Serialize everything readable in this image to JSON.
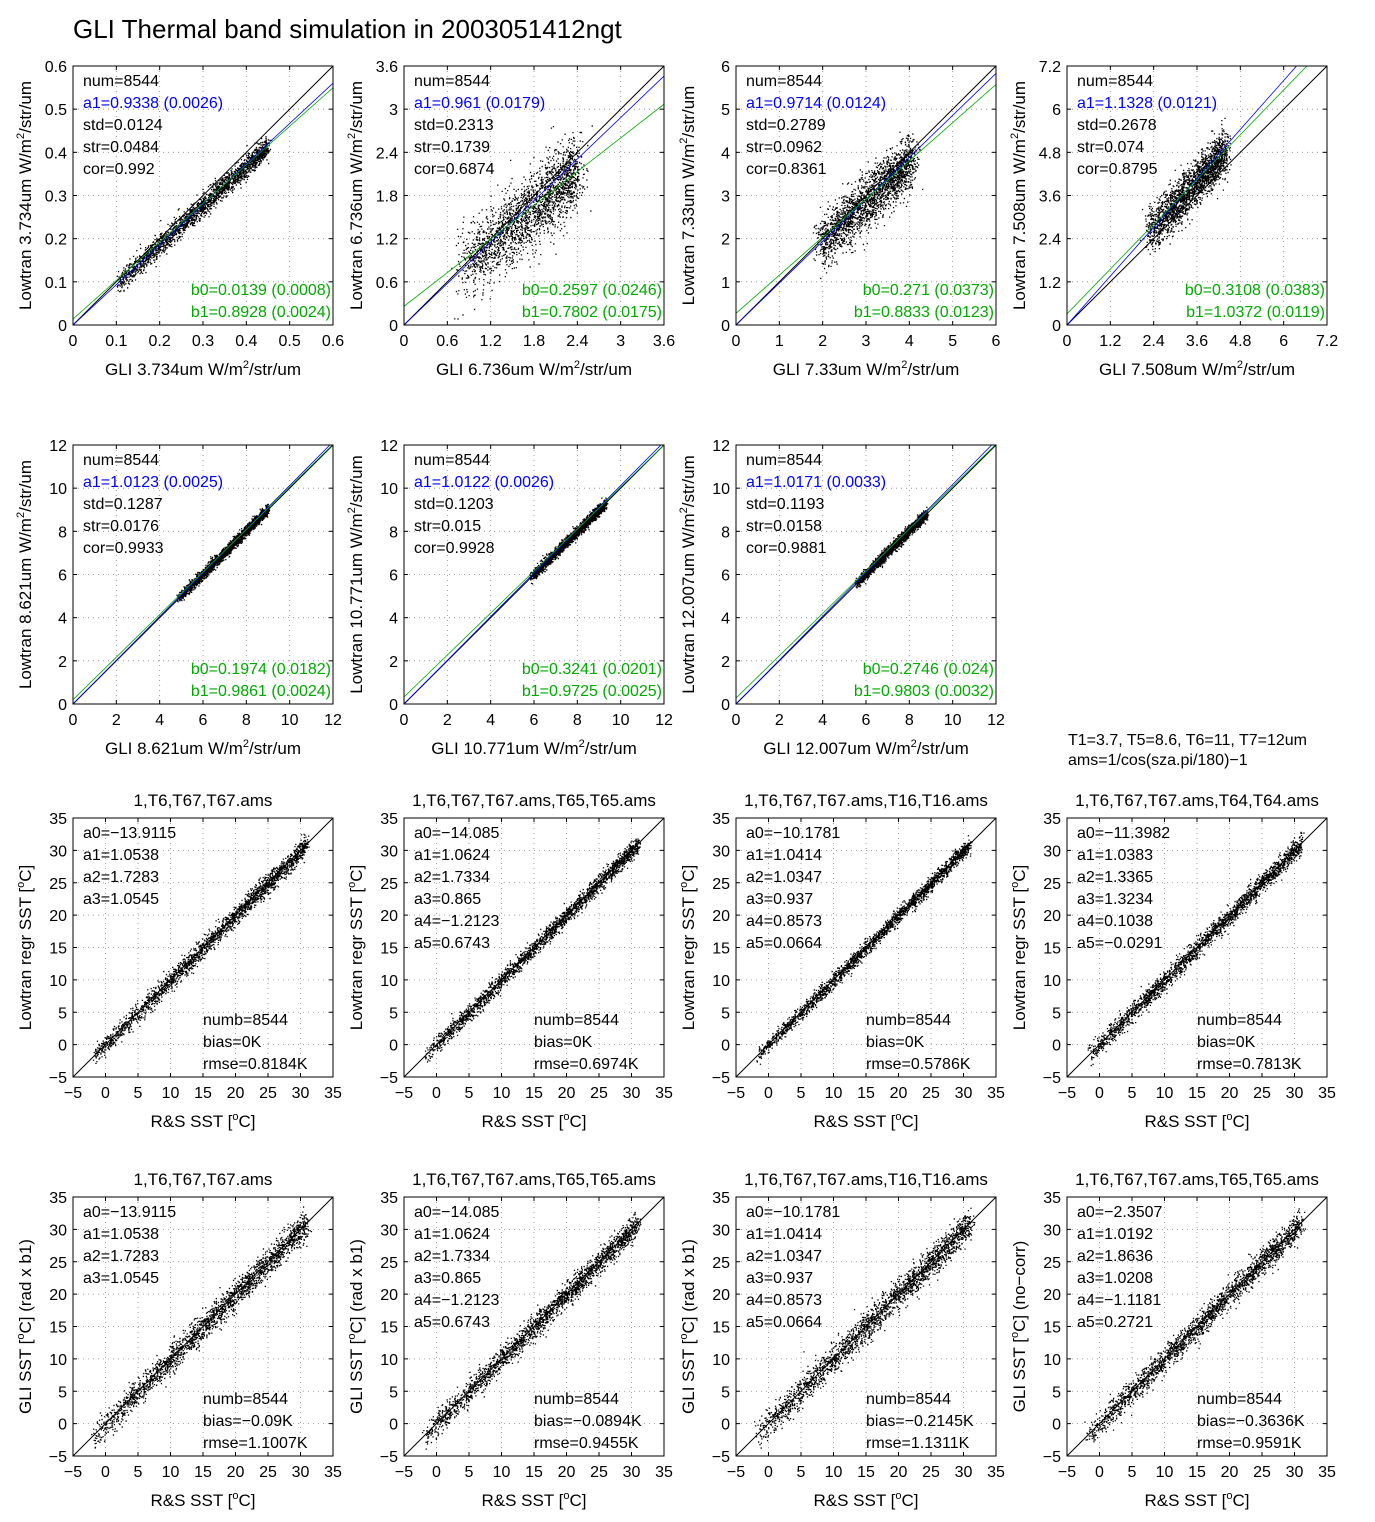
{
  "figure": {
    "title": "GLI Thermal band simulation in  2003051412ngt",
    "note": [
      "T1=3.7, T5=8.6, T6=11, T7=12um",
      "ams=1/cos(sza.pi/180)−1"
    ],
    "colors": {
      "black": "#000000",
      "blue": "#0000ff",
      "green": "#00aa00"
    }
  },
  "chart_data": [
    {
      "type": "scatter",
      "xlabel_main": "GLI 3.734um W/m",
      "xlabel_sup": "2",
      "xlabel_tail": "/str/um",
      "ylabel_main": "Lowtran 3.734um W/m",
      "ylabel_sup": "2",
      "ylabel_tail": "/str/um",
      "xlim": [
        0,
        0.6
      ],
      "ylim": [
        0,
        0.6
      ],
      "xticks": [
        "0",
        "0.1",
        "0.2",
        "0.3",
        "0.4",
        "0.5",
        "0.6"
      ],
      "yticks": [
        "0",
        "0.1",
        "0.2",
        "0.3",
        "0.4",
        "0.5",
        "0.6"
      ],
      "num": 8544,
      "a1": 0.9338,
      "b0": 0.0139,
      "b1": 0.8928,
      "text_top": [
        "num=8544",
        "a1=0.9338 (0.0026)",
        "std=0.0124",
        "str=0.0484",
        "cor=0.992"
      ],
      "text_bottom": [
        "b0=0.0139 (0.0008)",
        "b1=0.8928 (0.0024)"
      ],
      "cloud": {
        "xmin": 0.1,
        "xmax": 0.45,
        "spread": 0.012
      }
    },
    {
      "type": "scatter",
      "xlabel_main": "GLI 6.736um W/m",
      "xlabel_sup": "2",
      "xlabel_tail": "/str/um",
      "ylabel_main": "Lowtran 6.736um W/m",
      "ylabel_sup": "2",
      "ylabel_tail": "/str/um",
      "xlim": [
        0,
        3.6
      ],
      "ylim": [
        0,
        3.6
      ],
      "xticks": [
        "0",
        "0.6",
        "1.2",
        "1.8",
        "2.4",
        "3",
        "3.6"
      ],
      "yticks": [
        "0",
        "0.6",
        "1.2",
        "1.8",
        "2.4",
        "3",
        "3.6"
      ],
      "num": 8544,
      "a1": 0.961,
      "b0": 0.2597,
      "b1": 0.7802,
      "text_top": [
        "num=8544",
        "a1=0.961 (0.0179)",
        "std=0.2313",
        "str=0.1739",
        "cor=0.6874"
      ],
      "text_bottom": [
        "b0=0.2597 (0.0246)",
        "b1=0.7802 (0.0175)"
      ],
      "cloud": {
        "xmin": 0.8,
        "xmax": 2.4,
        "spread": 0.25
      }
    },
    {
      "type": "scatter",
      "xlabel_main": "GLI 7.33um W/m",
      "xlabel_sup": "2",
      "xlabel_tail": "/str/um",
      "ylabel_main": "Lowtran 7.33um W/m",
      "ylabel_sup": "2",
      "ylabel_tail": "/str/um",
      "xlim": [
        0,
        6
      ],
      "ylim": [
        0,
        6
      ],
      "xticks": [
        "0",
        "1",
        "2",
        "3",
        "4",
        "5",
        "6"
      ],
      "yticks": [
        "0",
        "1",
        "2",
        "3",
        "4",
        "5",
        "6"
      ],
      "num": 8544,
      "a1": 0.9714,
      "b0": 0.271,
      "b1": 0.8833,
      "text_top": [
        "num=8544",
        "a1=0.9714 (0.0124)",
        "std=0.2789",
        "str=0.0962",
        "cor=0.8361"
      ],
      "text_bottom": [
        "b0=0.271 (0.0373)",
        "b1=0.8833 (0.0123)"
      ],
      "cloud": {
        "xmin": 1.9,
        "xmax": 4.1,
        "spread": 0.3
      }
    },
    {
      "type": "scatter",
      "xlabel_main": "GLI 7.508um W/m",
      "xlabel_sup": "2",
      "xlabel_tail": "/str/um",
      "ylabel_main": "Lowtran 7.508um W/m",
      "ylabel_sup": "2",
      "ylabel_tail": "/str/um",
      "xlim": [
        0,
        7.2
      ],
      "ylim": [
        0,
        7.2
      ],
      "xticks": [
        "0",
        "1.2",
        "2.4",
        "3.6",
        "4.8",
        "6",
        "7.2"
      ],
      "yticks": [
        "0",
        "1.2",
        "2.4",
        "3.6",
        "4.8",
        "6",
        "7.2"
      ],
      "num": 8544,
      "a1": 1.1328,
      "b0": 0.3108,
      "b1": 1.0372,
      "text_top": [
        "num=8544",
        "a1=1.1328 (0.0121)",
        "std=0.2678",
        "str=0.074",
        "cor=0.8795"
      ],
      "text_bottom": [
        "b0=0.3108 (0.0383)",
        "b1=1.0372 (0.0119)"
      ],
      "cloud": {
        "xmin": 2.2,
        "xmax": 4.4,
        "spread": 0.3
      }
    },
    {
      "type": "scatter",
      "xlabel_main": "GLI 8.621um W/m",
      "xlabel_sup": "2",
      "xlabel_tail": "/str/um",
      "ylabel_main": "Lowtran 8.621um W/m",
      "ylabel_sup": "2",
      "ylabel_tail": "/str/um",
      "xlim": [
        0,
        12
      ],
      "ylim": [
        0,
        12
      ],
      "xticks": [
        "0",
        "2",
        "4",
        "6",
        "8",
        "10",
        "12"
      ],
      "yticks": [
        "0",
        "2",
        "4",
        "6",
        "8",
        "10",
        "12"
      ],
      "num": 8544,
      "a1": 1.0123,
      "b0": 0.1974,
      "b1": 0.9861,
      "text_top": [
        "num=8544",
        "a1=1.0123 (0.0025)",
        "std=0.1287",
        "str=0.0176",
        "cor=0.9933"
      ],
      "text_bottom": [
        "b0=0.1974 (0.0182)",
        "b1=0.9861 (0.0024)"
      ],
      "cloud": {
        "xmin": 4.8,
        "xmax": 9.0,
        "spread": 0.12
      }
    },
    {
      "type": "scatter",
      "xlabel_main": "GLI 10.771um W/m",
      "xlabel_sup": "2",
      "xlabel_tail": "/str/um",
      "ylabel_main": "Lowtran 10.771um W/m",
      "ylabel_sup": "2",
      "ylabel_tail": "/str/um",
      "xlim": [
        0,
        12
      ],
      "ylim": [
        0,
        12
      ],
      "xticks": [
        "0",
        "2",
        "4",
        "6",
        "8",
        "10",
        "12"
      ],
      "yticks": [
        "0",
        "2",
        "4",
        "6",
        "8",
        "10",
        "12"
      ],
      "num": 8544,
      "a1": 1.0122,
      "b0": 0.3241,
      "b1": 0.9725,
      "text_top": [
        "num=8544",
        "a1=1.0122 (0.0026)",
        "std=0.1203",
        "str=0.015",
        "cor=0.9928"
      ],
      "text_bottom": [
        "b0=0.3241 (0.0201)",
        "b1=0.9725 (0.0025)"
      ],
      "cloud": {
        "xmin": 5.8,
        "xmax": 9.3,
        "spread": 0.12
      }
    },
    {
      "type": "scatter",
      "xlabel_main": "GLI 12.007um W/m",
      "xlabel_sup": "2",
      "xlabel_tail": "/str/um",
      "ylabel_main": "Lowtran 12.007um W/m",
      "ylabel_sup": "2",
      "ylabel_tail": "/str/um",
      "xlim": [
        0,
        12
      ],
      "ylim": [
        0,
        12
      ],
      "xticks": [
        "0",
        "2",
        "4",
        "6",
        "8",
        "10",
        "12"
      ],
      "yticks": [
        "0",
        "2",
        "4",
        "6",
        "8",
        "10",
        "12"
      ],
      "num": 8544,
      "a1": 1.0171,
      "b0": 0.2746,
      "b1": 0.9803,
      "text_top": [
        "num=8544",
        "a1=1.0171 (0.0033)",
        "std=0.1193",
        "str=0.0158",
        "cor=0.9881"
      ],
      "text_bottom": [
        "b0=0.2746 (0.024)",
        "b1=0.9803 (0.0032)"
      ],
      "cloud": {
        "xmin": 5.5,
        "xmax": 8.8,
        "spread": 0.12
      }
    },
    {
      "type": "scatter",
      "title": "1,T6,T67,T67.ams",
      "xlabel_main": "R&S SST [",
      "xlabel_sup": "o",
      "xlabel_tail": "C]",
      "ylabel_main": "Lowtran regr SST [",
      "ylabel_sup": "o",
      "ylabel_tail": "C]",
      "xlim": [
        -5,
        35
      ],
      "ylim": [
        -5,
        35
      ],
      "xticks": [
        "−5",
        "0",
        "5",
        "10",
        "15",
        "20",
        "25",
        "30",
        "35"
      ],
      "yticks": [
        "−5",
        "0",
        "5",
        "10",
        "15",
        "20",
        "25",
        "30",
        "35"
      ],
      "text_top": [
        "a0=−13.9115",
        "a1=1.0538",
        "a2=1.7283",
        "a3=1.0545"
      ],
      "text_bottom": [
        "numb=8544",
        "bias=0K",
        "rmse=0.8184K"
      ],
      "cloud": {
        "xmin": -1.8,
        "xmax": 31,
        "spread": 0.75
      }
    },
    {
      "type": "scatter",
      "title": "1,T6,T67,T67.ams,T65,T65.ams",
      "xlabel_main": "R&S SST [",
      "xlabel_sup": "o",
      "xlabel_tail": "C]",
      "ylabel_main": "Lowtran regr SST [",
      "ylabel_sup": "o",
      "ylabel_tail": "C]",
      "xlim": [
        -5,
        35
      ],
      "ylim": [
        -5,
        35
      ],
      "xticks": [
        "−5",
        "0",
        "5",
        "10",
        "15",
        "20",
        "25",
        "30",
        "35"
      ],
      "yticks": [
        "−5",
        "0",
        "5",
        "10",
        "15",
        "20",
        "25",
        "30",
        "35"
      ],
      "text_top": [
        "a0=−14.085",
        "a1=1.0624",
        "a2=1.7334",
        "a3=0.865",
        "a4=−1.2123",
        "a5=0.6743"
      ],
      "text_bottom": [
        "numb=8544",
        "bias=0K",
        "rmse=0.6974K"
      ],
      "cloud": {
        "xmin": -1.8,
        "xmax": 31,
        "spread": 0.65
      }
    },
    {
      "type": "scatter",
      "title": "1,T6,T67,T67.ams,T16,T16.ams",
      "xlabel_main": "R&S SST [",
      "xlabel_sup": "o",
      "xlabel_tail": "C]",
      "ylabel_main": "Lowtran regr SST [",
      "ylabel_sup": "o",
      "ylabel_tail": "C]",
      "xlim": [
        -5,
        35
      ],
      "ylim": [
        -5,
        35
      ],
      "xticks": [
        "−5",
        "0",
        "5",
        "10",
        "15",
        "20",
        "25",
        "30",
        "35"
      ],
      "yticks": [
        "−5",
        "0",
        "5",
        "10",
        "15",
        "20",
        "25",
        "30",
        "35"
      ],
      "text_top": [
        "a0=−10.1781",
        "a1=1.0414",
        "a2=1.0347",
        "a3=0.937",
        "a4=0.8573",
        "a5=0.0664"
      ],
      "text_bottom": [
        "numb=8544",
        "bias=0K",
        "rmse=0.5786K"
      ],
      "cloud": {
        "xmin": -1.8,
        "xmax": 31,
        "spread": 0.55
      }
    },
    {
      "type": "scatter",
      "title": "1,T6,T67,T67.ams,T64,T64.ams",
      "xlabel_main": "R&S SST [",
      "xlabel_sup": "o",
      "xlabel_tail": "C]",
      "ylabel_main": "Lowtran regr SST [",
      "ylabel_sup": "o",
      "ylabel_tail": "C]",
      "xlim": [
        -5,
        35
      ],
      "ylim": [
        -5,
        35
      ],
      "xticks": [
        "−5",
        "0",
        "5",
        "10",
        "15",
        "20",
        "25",
        "30",
        "35"
      ],
      "yticks": [
        "−5",
        "0",
        "5",
        "10",
        "15",
        "20",
        "25",
        "30",
        "35"
      ],
      "text_top": [
        "a0=−11.3982",
        "a1=1.0383",
        "a2=1.3365",
        "a3=1.3234",
        "a4=0.1038",
        "a5=−0.0291"
      ],
      "text_bottom": [
        "numb=8544",
        "bias=0K",
        "rmse=0.7813K"
      ],
      "cloud": {
        "xmin": -1.8,
        "xmax": 31,
        "spread": 0.75
      }
    },
    {
      "type": "scatter",
      "title": "1,T6,T67,T67.ams",
      "xlabel_main": "R&S SST [",
      "xlabel_sup": "o",
      "xlabel_tail": "C]",
      "ylabel_main": "GLI SST [",
      "ylabel_sup": "o",
      "ylabel_tail": "C] (rad x b1)",
      "xlim": [
        -5,
        35
      ],
      "ylim": [
        -5,
        35
      ],
      "xticks": [
        "−5",
        "0",
        "5",
        "10",
        "15",
        "20",
        "25",
        "30",
        "35"
      ],
      "yticks": [
        "−5",
        "0",
        "5",
        "10",
        "15",
        "20",
        "25",
        "30",
        "35"
      ],
      "text_top": [
        "a0=−13.9115",
        "a1=1.0538",
        "a2=1.7283",
        "a3=1.0545"
      ],
      "text_bottom": [
        "numb=8544",
        "bias=−0.09K",
        "rmse=1.1007K"
      ],
      "cloud": {
        "xmin": -1.8,
        "xmax": 31,
        "spread": 1.05
      }
    },
    {
      "type": "scatter",
      "title": "1,T6,T67,T67.ams,T65,T65.ams",
      "xlabel_main": "R&S SST [",
      "xlabel_sup": "o",
      "xlabel_tail": "C]",
      "ylabel_main": "GLI SST [",
      "ylabel_sup": "o",
      "ylabel_tail": "C] (rad x b1)",
      "xlim": [
        -5,
        35
      ],
      "ylim": [
        -5,
        35
      ],
      "xticks": [
        "−5",
        "0",
        "5",
        "10",
        "15",
        "20",
        "25",
        "30",
        "35"
      ],
      "yticks": [
        "−5",
        "0",
        "5",
        "10",
        "15",
        "20",
        "25",
        "30",
        "35"
      ],
      "text_top": [
        "a0=−14.085",
        "a1=1.0624",
        "a2=1.7334",
        "a3=0.865",
        "a4=−1.2123",
        "a5=0.6743"
      ],
      "text_bottom": [
        "numb=8544",
        "bias=−0.0894K",
        "rmse=0.9455K"
      ],
      "cloud": {
        "xmin": -1.8,
        "xmax": 31,
        "spread": 0.9
      }
    },
    {
      "type": "scatter",
      "title": "1,T6,T67,T67.ams,T16,T16.ams",
      "xlabel_main": "R&S SST [",
      "xlabel_sup": "o",
      "xlabel_tail": "C]",
      "ylabel_main": "GLI SST [",
      "ylabel_sup": "o",
      "ylabel_tail": "C] (rad x b1)",
      "xlim": [
        -5,
        35
      ],
      "ylim": [
        -5,
        35
      ],
      "xticks": [
        "−5",
        "0",
        "5",
        "10",
        "15",
        "20",
        "25",
        "30",
        "35"
      ],
      "yticks": [
        "−5",
        "0",
        "5",
        "10",
        "15",
        "20",
        "25",
        "30",
        "35"
      ],
      "text_top": [
        "a0=−10.1781",
        "a1=1.0414",
        "a2=1.0347",
        "a3=0.937",
        "a4=0.8573",
        "a5=0.0664"
      ],
      "text_bottom": [
        "numb=8544",
        "bias=−0.2145K",
        "rmse=1.1311K"
      ],
      "cloud": {
        "xmin": -1.8,
        "xmax": 31,
        "spread": 1.1
      }
    },
    {
      "type": "scatter",
      "title": "1,T6,T67,T67.ams,T65,T65.ams",
      "xlabel_main": "R&S SST [",
      "xlabel_sup": "o",
      "xlabel_tail": "C]",
      "ylabel_main": "GLI SST [",
      "ylabel_sup": "o",
      "ylabel_tail": "C] (no−corr)",
      "xlim": [
        -5,
        35
      ],
      "ylim": [
        -5,
        35
      ],
      "xticks": [
        "−5",
        "0",
        "5",
        "10",
        "15",
        "20",
        "25",
        "30",
        "35"
      ],
      "yticks": [
        "−5",
        "0",
        "5",
        "10",
        "15",
        "20",
        "25",
        "30",
        "35"
      ],
      "text_top": [
        "a0=−2.3507",
        "a1=1.0192",
        "a2=1.8636",
        "a3=1.0208",
        "a4=−1.1181",
        "a5=0.2721"
      ],
      "text_bottom": [
        "numb=8544",
        "bias=−0.3636K",
        "rmse=0.9591K"
      ],
      "cloud": {
        "xmin": -1.8,
        "xmax": 31,
        "spread": 0.95
      }
    }
  ]
}
